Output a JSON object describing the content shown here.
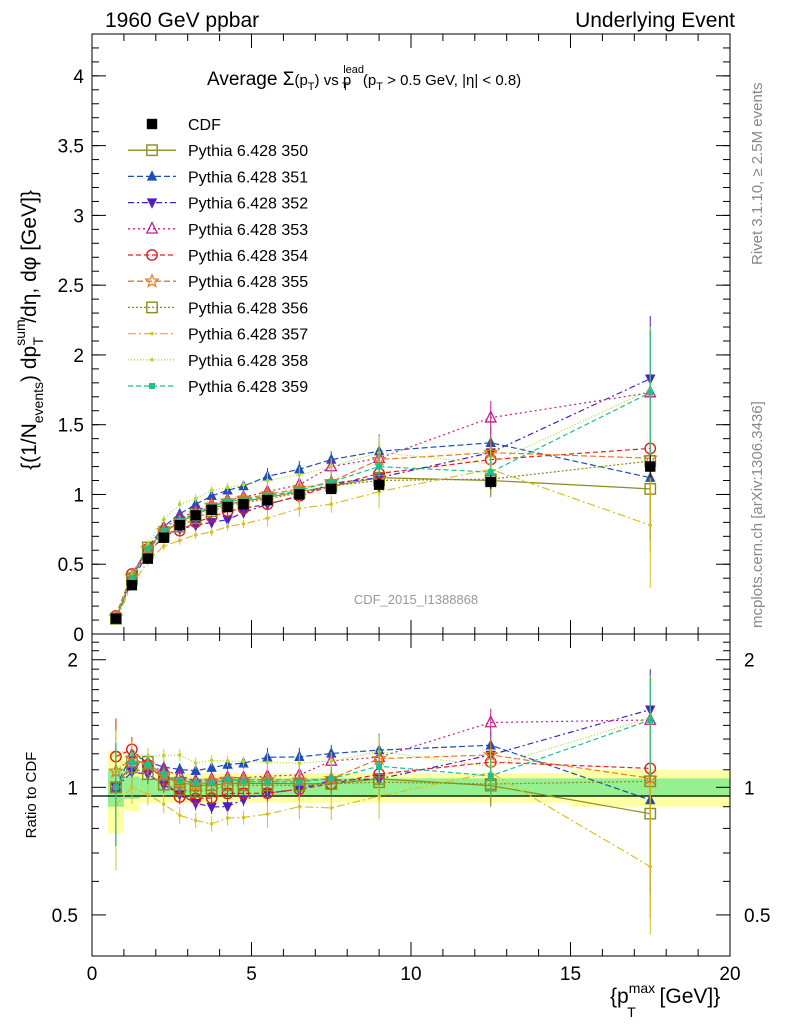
{
  "header": {
    "left": "1960 GeV ppbar",
    "right": "Underlying Event"
  },
  "side_text": {
    "rivet": "Rivet 3.1.10, ≥ 2.5M events",
    "mcplots": "mcplots.cern.ch [arXiv:1306.3436]"
  },
  "watermark": "CDF_2015_I1388868",
  "plot_title": {
    "prefix": "Average ",
    "sigma": "Σ",
    "pt_open": "(p",
    "pt_sub": "T",
    "pt_close": ")",
    "vs": " vs p",
    "lead_sup": "lead",
    "lead_sub": "T",
    "cut_open": " (p",
    "cut_sub": "T",
    "cut_rest": " > 0.5 GeV, |η| < 0.8)"
  },
  "axes": {
    "y_main_label": "{(1/N",
    "y_main_events": "events",
    "y_main_mid": ") dp",
    "y_main_sum": "sum",
    "y_main_T": "T",
    "y_main_end": "/dη, dφ [GeV]}",
    "y_ratio_label": "Ratio to CDF",
    "x_label": "{p",
    "x_label_max": "max",
    "x_label_T": "T",
    "x_label_end": " [GeV]}",
    "x_ticks": [
      "0",
      "5",
      "10",
      "15",
      "20"
    ],
    "y_main_ticks": [
      "0",
      "0.5",
      "1",
      "1.5",
      "2",
      "2.5",
      "3",
      "3.5",
      "4"
    ],
    "y_ratio_ticks": [
      "0.5",
      "1",
      "2"
    ]
  },
  "chart_data": {
    "type": "scatter",
    "x_range": [
      0,
      20
    ],
    "main_ylim": [
      0,
      4.3
    ],
    "ratio_ylim": [
      0.4,
      2.3
    ],
    "ratio_scale": "log",
    "legend_position": "top-left",
    "data": {
      "name": "CDF",
      "x": [
        0.75,
        1.25,
        1.75,
        2.25,
        2.75,
        3.25,
        3.75,
        4.25,
        4.75,
        5.5,
        6.5,
        7.5,
        9.0,
        12.5,
        17.5
      ],
      "y": [
        0.11,
        0.35,
        0.54,
        0.69,
        0.78,
        0.85,
        0.89,
        0.91,
        0.93,
        0.96,
        1.0,
        1.04,
        1.07,
        1.09,
        1.2
      ],
      "ratio_band_inner": [
        0.1,
        0.06,
        0.05,
        0.05,
        0.05,
        0.05,
        0.05,
        0.05,
        0.05,
        0.05,
        0.05,
        0.05,
        0.05,
        0.05,
        0.05
      ],
      "ratio_band_outer": [
        0.22,
        0.12,
        0.08,
        0.08,
        0.08,
        0.08,
        0.08,
        0.08,
        0.08,
        0.08,
        0.08,
        0.08,
        0.08,
        0.08,
        0.1
      ]
    },
    "series": [
      {
        "name": "Pythia 6.428 350",
        "color": "#8b8b1f",
        "marker": "square-open",
        "dash": "",
        "y": [
          0.11,
          0.4,
          0.62,
          0.73,
          0.8,
          0.86,
          0.9,
          0.93,
          0.95,
          0.98,
          1.02,
          1.06,
          1.12,
          1.1,
          1.04
        ]
      },
      {
        "name": "Pythia 6.428 351",
        "color": "#1f4fb5",
        "marker": "triangle-up",
        "dash": "6,3",
        "y": [
          0.11,
          0.42,
          0.62,
          0.77,
          0.86,
          0.93,
          0.99,
          1.03,
          1.06,
          1.13,
          1.18,
          1.25,
          1.31,
          1.37,
          1.12
        ]
      },
      {
        "name": "Pythia 6.428 352",
        "color": "#4d1fc2",
        "marker": "triangle-down",
        "dash": "6,3,2,3",
        "y": [
          0.11,
          0.38,
          0.58,
          0.7,
          0.75,
          0.78,
          0.8,
          0.82,
          0.87,
          0.93,
          0.99,
          1.08,
          1.12,
          1.3,
          1.83
        ]
      },
      {
        "name": "Pythia 6.428 353",
        "color": "#c21f8a",
        "marker": "triangle-open",
        "dash": "2,3",
        "y": [
          0.11,
          0.4,
          0.6,
          0.76,
          0.83,
          0.88,
          0.93,
          0.96,
          0.98,
          1.02,
          1.07,
          1.2,
          1.26,
          1.55,
          1.73
        ]
      },
      {
        "name": "Pythia 6.428 354",
        "color": "#e0201f",
        "marker": "circle-open",
        "dash": "5,3",
        "y": [
          0.13,
          0.43,
          0.61,
          0.72,
          0.74,
          0.8,
          0.84,
          0.88,
          0.9,
          0.93,
          0.99,
          1.06,
          1.15,
          1.25,
          1.33
        ]
      },
      {
        "name": "Pythia 6.428 355",
        "color": "#e87a1f",
        "marker": "star-open",
        "dash": "6,3",
        "y": [
          0.12,
          0.41,
          0.61,
          0.74,
          0.8,
          0.86,
          0.92,
          0.95,
          0.97,
          1.0,
          1.04,
          1.09,
          1.25,
          1.3,
          1.26
        ]
      },
      {
        "name": "Pythia 6.428 356",
        "color": "#8a8a1f",
        "marker": "square-open",
        "dash": "2,2",
        "y": [
          0.11,
          0.39,
          0.58,
          0.7,
          0.77,
          0.83,
          0.88,
          0.92,
          0.94,
          0.97,
          1.01,
          1.06,
          1.1,
          1.11,
          1.24
        ]
      },
      {
        "name": "Pythia 6.428 357",
        "color": "#d9c21f",
        "marker": "dot",
        "dash": "8,3,2,3",
        "y": [
          0.1,
          0.35,
          0.52,
          0.63,
          0.67,
          0.71,
          0.73,
          0.77,
          0.79,
          0.83,
          0.9,
          0.93,
          1.02,
          1.18,
          0.78
        ]
      },
      {
        "name": "Pythia 6.428 358",
        "color": "#b5d91f",
        "marker": "dot",
        "dash": "1,2",
        "y": [
          0.12,
          0.42,
          0.64,
          0.82,
          0.93,
          0.97,
          1.03,
          1.05,
          1.07,
          1.1,
          1.14,
          1.2,
          1.3,
          1.22,
          1.75
        ]
      },
      {
        "name": "Pythia 6.428 359",
        "color": "#1fbf8f",
        "marker": "square-small",
        "dash": "5,3",
        "y": [
          0.11,
          0.4,
          0.61,
          0.74,
          0.81,
          0.87,
          0.91,
          0.95,
          0.96,
          0.99,
          1.03,
          1.09,
          1.2,
          1.16,
          1.73
        ]
      }
    ]
  }
}
